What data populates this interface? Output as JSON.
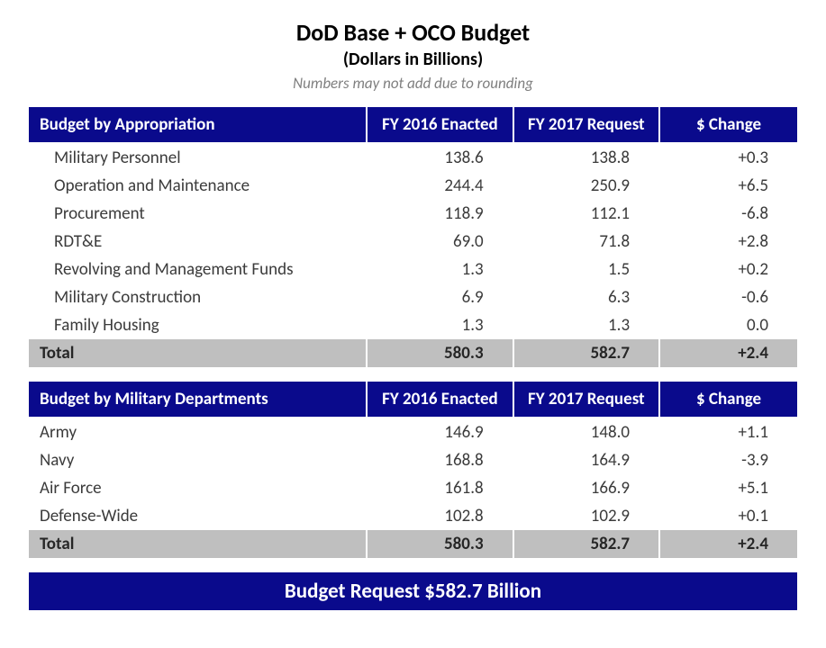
{
  "title": "DoD Base + OCO Budget",
  "subtitle": "(Dollars in Billions)",
  "caption": "Numbers may not add due to rounding",
  "colors": {
    "header_bg": "#0a0a8c",
    "header_fg": "#ffffff",
    "total_bg": "#bfbfbf",
    "body_fg": "#3b3b3b",
    "caption_fg": "#7f7f7f",
    "page_bg": "#ffffff"
  },
  "table1": {
    "headers": {
      "c0": "Budget by Appropriation",
      "c1": "FY 2016 Enacted",
      "c2": "FY 2017 Request",
      "c3": "$ Change"
    },
    "rows": [
      {
        "label": "Military Personnel",
        "v1": "138.6",
        "v2": "138.8",
        "v3": "+0.3"
      },
      {
        "label": "Operation and Maintenance",
        "v1": "244.4",
        "v2": "250.9",
        "v3": "+6.5"
      },
      {
        "label": "Procurement",
        "v1": "118.9",
        "v2": "112.1",
        "v3": "-6.8"
      },
      {
        "label": "RDT&E",
        "v1": "69.0",
        "v2": "71.8",
        "v3": "+2.8"
      },
      {
        "label": "Revolving and Management Funds",
        "v1": "1.3",
        "v2": "1.5",
        "v3": "+0.2"
      },
      {
        "label": "Military Construction",
        "v1": "6.9",
        "v2": "6.3",
        "v3": "-0.6"
      },
      {
        "label": "Family Housing",
        "v1": "1.3",
        "v2": "1.3",
        "v3": "0.0"
      }
    ],
    "total": {
      "label": "Total",
      "v1": "580.3",
      "v2": "582.7",
      "v3": "+2.4"
    }
  },
  "table2": {
    "headers": {
      "c0": "Budget by Military Departments",
      "c1": "FY 2016 Enacted",
      "c2": "FY 2017 Request",
      "c3": "$ Change"
    },
    "rows": [
      {
        "label": "Army",
        "v1": "146.9",
        "v2": "148.0",
        "v3": "+1.1"
      },
      {
        "label": "Navy",
        "v1": "168.8",
        "v2": "164.9",
        "v3": "-3.9"
      },
      {
        "label": "Air Force",
        "v1": "161.8",
        "v2": "166.9",
        "v3": "+5.1"
      },
      {
        "label": "Defense-Wide",
        "v1": "102.8",
        "v2": "102.9",
        "v3": "+0.1"
      }
    ],
    "total": {
      "label": "Total",
      "v1": "580.3",
      "v2": "582.7",
      "v3": "+2.4"
    }
  },
  "footer": "Budget Request $582.7 Billion"
}
